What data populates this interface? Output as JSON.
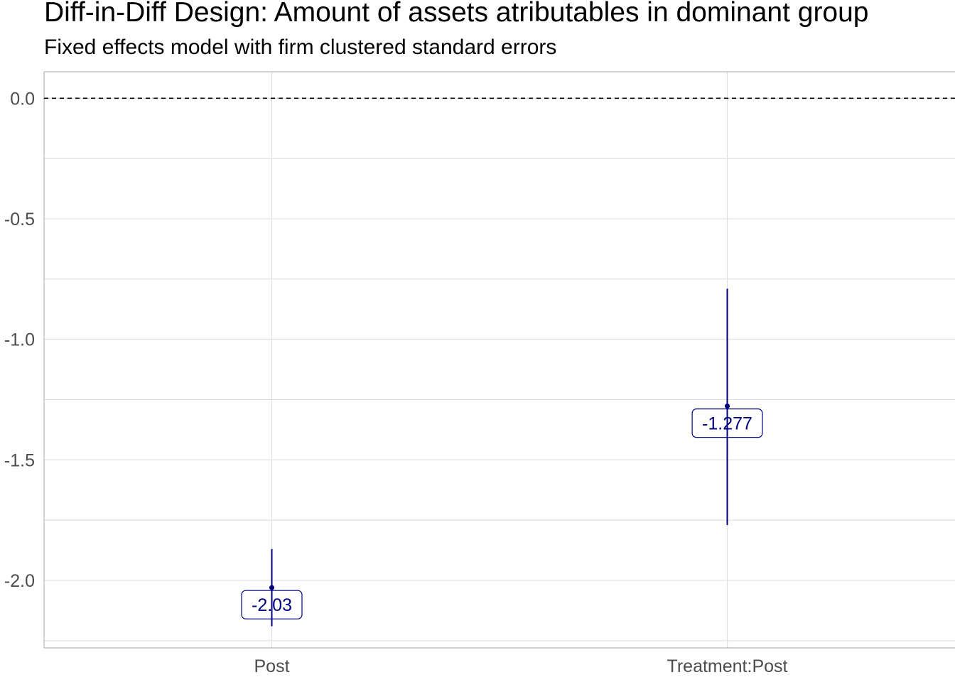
{
  "chart_data": {
    "type": "scatter",
    "title": "Diff-in-Diff Design: Amount of assets atributables in dominant group",
    "subtitle": "Fixed effects model with firm clustered standard errors",
    "xlabel": "",
    "ylabel": "",
    "categories": [
      "Post",
      "Treatment:Post"
    ],
    "estimates": [
      {
        "term": "Post",
        "estimate": -2.03,
        "label": "-2.03",
        "ci_low": -2.19,
        "ci_high": -1.87
      },
      {
        "term": "Treatment:Post",
        "estimate": -1.277,
        "label": "-1.277",
        "ci_low": -1.77,
        "ci_high": -0.79
      }
    ],
    "ylim": [
      -2.28,
      0.11
    ],
    "yticks": [
      0.0,
      -0.5,
      -1.0,
      -1.5,
      -2.0
    ],
    "ytick_labels": [
      "0.0",
      "-0.5",
      "-1.0",
      "-1.5",
      "-2.0"
    ],
    "reference_line": {
      "y": 0,
      "style": "dashed"
    },
    "grid": true,
    "colors": {
      "point": "#00007f",
      "grid": "#dedede",
      "axis": "#b3b3b3",
      "text": "#4d4d4d"
    }
  }
}
